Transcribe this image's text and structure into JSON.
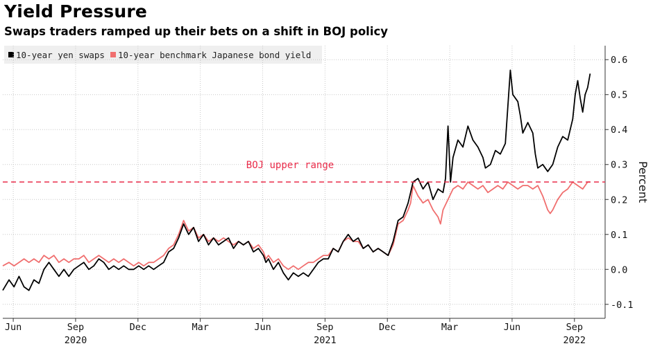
{
  "colors": {
    "swaps": "#000000",
    "bond": "#f06e6e",
    "threshold": "#ea2c4a",
    "grid": "#c8c8c8"
  },
  "chart_data": {
    "type": "line",
    "title": "Yield Pressure",
    "subtitle": "Swaps traders ramped up their bets on a shift in BOJ policy",
    "ylabel": "Percent",
    "xlabel": "",
    "ylim": [
      -0.14,
      0.64
    ],
    "y_ticks": [
      {
        "value": 0.6,
        "label": "0.6"
      },
      {
        "value": 0.5,
        "label": "0.5"
      },
      {
        "value": 0.4,
        "label": "0.4"
      },
      {
        "value": 0.3,
        "label": "0.3"
      },
      {
        "value": 0.2,
        "label": "0.2"
      },
      {
        "value": 0.1,
        "label": "0.1"
      },
      {
        "value": 0.0,
        "label": "0.0"
      },
      {
        "value": -0.1,
        "label": "-0.1"
      }
    ],
    "x_range": [
      2020.375,
      2022.79
    ],
    "x_ticks": [
      {
        "value": 2020.417,
        "label": "Jun"
      },
      {
        "value": 2020.667,
        "label": "Sep"
      },
      {
        "value": 2020.917,
        "label": "Dec"
      },
      {
        "value": 2021.167,
        "label": "Mar"
      },
      {
        "value": 2021.417,
        "label": "Jun"
      },
      {
        "value": 2021.667,
        "label": "Sep"
      },
      {
        "value": 2021.917,
        "label": "Dec"
      },
      {
        "value": 2022.167,
        "label": "Mar"
      },
      {
        "value": 2022.417,
        "label": "Jun"
      },
      {
        "value": 2022.667,
        "label": "Sep"
      }
    ],
    "year_labels": [
      {
        "value": 2020.667,
        "label": "2020"
      },
      {
        "value": 2021.667,
        "label": "2021"
      },
      {
        "value": 2022.667,
        "label": "2022"
      }
    ],
    "threshold": {
      "value": 0.25,
      "label": "BOJ upper range"
    },
    "series": [
      {
        "name": "10-year yen swaps",
        "color": "#000000",
        "points": [
          [
            2020.375,
            -0.06
          ],
          [
            2020.4,
            -0.03
          ],
          [
            2020.42,
            -0.05
          ],
          [
            2020.44,
            -0.02
          ],
          [
            2020.46,
            -0.05
          ],
          [
            2020.48,
            -0.06
          ],
          [
            2020.5,
            -0.03
          ],
          [
            2020.52,
            -0.04
          ],
          [
            2020.54,
            0.0
          ],
          [
            2020.56,
            0.02
          ],
          [
            2020.58,
            0.0
          ],
          [
            2020.6,
            -0.02
          ],
          [
            2020.62,
            0.0
          ],
          [
            2020.64,
            -0.02
          ],
          [
            2020.66,
            0.0
          ],
          [
            2020.68,
            0.01
          ],
          [
            2020.7,
            0.02
          ],
          [
            2020.72,
            0.0
          ],
          [
            2020.74,
            0.01
          ],
          [
            2020.76,
            0.03
          ],
          [
            2020.78,
            0.02
          ],
          [
            2020.8,
            0.0
          ],
          [
            2020.82,
            0.01
          ],
          [
            2020.84,
            0.0
          ],
          [
            2020.86,
            0.01
          ],
          [
            2020.88,
            0.0
          ],
          [
            2020.9,
            0.0
          ],
          [
            2020.92,
            0.01
          ],
          [
            2020.94,
            0.0
          ],
          [
            2020.96,
            0.01
          ],
          [
            2020.98,
            0.0
          ],
          [
            2021.0,
            0.01
          ],
          [
            2021.02,
            0.02
          ],
          [
            2021.04,
            0.05
          ],
          [
            2021.06,
            0.06
          ],
          [
            2021.08,
            0.09
          ],
          [
            2021.1,
            0.13
          ],
          [
            2021.12,
            0.1
          ],
          [
            2021.14,
            0.12
          ],
          [
            2021.16,
            0.08
          ],
          [
            2021.18,
            0.1
          ],
          [
            2021.2,
            0.07
          ],
          [
            2021.22,
            0.09
          ],
          [
            2021.24,
            0.07
          ],
          [
            2021.26,
            0.08
          ],
          [
            2021.28,
            0.09
          ],
          [
            2021.3,
            0.06
          ],
          [
            2021.32,
            0.08
          ],
          [
            2021.34,
            0.07
          ],
          [
            2021.36,
            0.08
          ],
          [
            2021.38,
            0.05
          ],
          [
            2021.4,
            0.06
          ],
          [
            2021.42,
            0.04
          ],
          [
            2021.43,
            0.02
          ],
          [
            2021.44,
            0.03
          ],
          [
            2021.46,
            0.0
          ],
          [
            2021.48,
            0.02
          ],
          [
            2021.5,
            -0.01
          ],
          [
            2021.52,
            -0.03
          ],
          [
            2021.54,
            -0.01
          ],
          [
            2021.56,
            -0.02
          ],
          [
            2021.58,
            -0.01
          ],
          [
            2021.6,
            -0.02
          ],
          [
            2021.62,
            0.0
          ],
          [
            2021.64,
            0.02
          ],
          [
            2021.66,
            0.03
          ],
          [
            2021.68,
            0.03
          ],
          [
            2021.7,
            0.06
          ],
          [
            2021.72,
            0.05
          ],
          [
            2021.74,
            0.08
          ],
          [
            2021.76,
            0.1
          ],
          [
            2021.78,
            0.08
          ],
          [
            2021.8,
            0.09
          ],
          [
            2021.82,
            0.06
          ],
          [
            2021.84,
            0.07
          ],
          [
            2021.86,
            0.05
          ],
          [
            2021.88,
            0.06
          ],
          [
            2021.9,
            0.05
          ],
          [
            2021.92,
            0.04
          ],
          [
            2021.94,
            0.08
          ],
          [
            2021.96,
            0.14
          ],
          [
            2021.98,
            0.15
          ],
          [
            2022.0,
            0.19
          ],
          [
            2022.01,
            0.22
          ],
          [
            2022.02,
            0.25
          ],
          [
            2022.04,
            0.26
          ],
          [
            2022.06,
            0.23
          ],
          [
            2022.08,
            0.25
          ],
          [
            2022.1,
            0.2
          ],
          [
            2022.12,
            0.23
          ],
          [
            2022.14,
            0.22
          ],
          [
            2022.15,
            0.26
          ],
          [
            2022.16,
            0.41
          ],
          [
            2022.17,
            0.25
          ],
          [
            2022.18,
            0.32
          ],
          [
            2022.2,
            0.37
          ],
          [
            2022.22,
            0.35
          ],
          [
            2022.24,
            0.41
          ],
          [
            2022.26,
            0.37
          ],
          [
            2022.28,
            0.35
          ],
          [
            2022.3,
            0.32
          ],
          [
            2022.31,
            0.29
          ],
          [
            2022.33,
            0.3
          ],
          [
            2022.35,
            0.34
          ],
          [
            2022.37,
            0.33
          ],
          [
            2022.39,
            0.36
          ],
          [
            2022.41,
            0.57
          ],
          [
            2022.42,
            0.5
          ],
          [
            2022.44,
            0.48
          ],
          [
            2022.45,
            0.44
          ],
          [
            2022.46,
            0.39
          ],
          [
            2022.48,
            0.42
          ],
          [
            2022.5,
            0.39
          ],
          [
            2022.51,
            0.33
          ],
          [
            2022.52,
            0.29
          ],
          [
            2022.54,
            0.3
          ],
          [
            2022.56,
            0.28
          ],
          [
            2022.58,
            0.3
          ],
          [
            2022.6,
            0.35
          ],
          [
            2022.62,
            0.38
          ],
          [
            2022.64,
            0.37
          ],
          [
            2022.66,
            0.43
          ],
          [
            2022.67,
            0.5
          ],
          [
            2022.68,
            0.54
          ],
          [
            2022.69,
            0.49
          ],
          [
            2022.7,
            0.45
          ],
          [
            2022.71,
            0.5
          ],
          [
            2022.72,
            0.52
          ],
          [
            2022.73,
            0.56
          ]
        ]
      },
      {
        "name": "10-year benchmark Japanese bond yield",
        "color": "#f06e6e",
        "points": [
          [
            2020.375,
            0.01
          ],
          [
            2020.4,
            0.02
          ],
          [
            2020.42,
            0.01
          ],
          [
            2020.44,
            0.02
          ],
          [
            2020.46,
            0.03
          ],
          [
            2020.48,
            0.02
          ],
          [
            2020.5,
            0.03
          ],
          [
            2020.52,
            0.02
          ],
          [
            2020.54,
            0.04
          ],
          [
            2020.56,
            0.03
          ],
          [
            2020.58,
            0.04
          ],
          [
            2020.6,
            0.02
          ],
          [
            2020.62,
            0.03
          ],
          [
            2020.64,
            0.02
          ],
          [
            2020.66,
            0.03
          ],
          [
            2020.68,
            0.03
          ],
          [
            2020.7,
            0.04
          ],
          [
            2020.72,
            0.02
          ],
          [
            2020.74,
            0.03
          ],
          [
            2020.76,
            0.04
          ],
          [
            2020.78,
            0.03
          ],
          [
            2020.8,
            0.02
          ],
          [
            2020.82,
            0.03
          ],
          [
            2020.84,
            0.02
          ],
          [
            2020.86,
            0.03
          ],
          [
            2020.88,
            0.02
          ],
          [
            2020.9,
            0.01
          ],
          [
            2020.92,
            0.02
          ],
          [
            2020.94,
            0.01
          ],
          [
            2020.96,
            0.02
          ],
          [
            2020.98,
            0.02
          ],
          [
            2021.0,
            0.03
          ],
          [
            2021.02,
            0.04
          ],
          [
            2021.04,
            0.06
          ],
          [
            2021.06,
            0.07
          ],
          [
            2021.08,
            0.1
          ],
          [
            2021.1,
            0.14
          ],
          [
            2021.12,
            0.11
          ],
          [
            2021.14,
            0.12
          ],
          [
            2021.16,
            0.09
          ],
          [
            2021.18,
            0.1
          ],
          [
            2021.2,
            0.08
          ],
          [
            2021.22,
            0.09
          ],
          [
            2021.24,
            0.08
          ],
          [
            2021.26,
            0.09
          ],
          [
            2021.28,
            0.08
          ],
          [
            2021.3,
            0.07
          ],
          [
            2021.32,
            0.08
          ],
          [
            2021.34,
            0.07
          ],
          [
            2021.36,
            0.08
          ],
          [
            2021.38,
            0.06
          ],
          [
            2021.4,
            0.07
          ],
          [
            2021.42,
            0.05
          ],
          [
            2021.43,
            0.03
          ],
          [
            2021.44,
            0.04
          ],
          [
            2021.46,
            0.02
          ],
          [
            2021.48,
            0.03
          ],
          [
            2021.5,
            0.01
          ],
          [
            2021.52,
            0.0
          ],
          [
            2021.54,
            0.01
          ],
          [
            2021.56,
            0.0
          ],
          [
            2021.58,
            0.01
          ],
          [
            2021.6,
            0.02
          ],
          [
            2021.62,
            0.02
          ],
          [
            2021.64,
            0.03
          ],
          [
            2021.66,
            0.04
          ],
          [
            2021.68,
            0.04
          ],
          [
            2021.7,
            0.06
          ],
          [
            2021.72,
            0.05
          ],
          [
            2021.74,
            0.08
          ],
          [
            2021.76,
            0.09
          ],
          [
            2021.78,
            0.08
          ],
          [
            2021.8,
            0.08
          ],
          [
            2021.82,
            0.06
          ],
          [
            2021.84,
            0.07
          ],
          [
            2021.86,
            0.05
          ],
          [
            2021.88,
            0.06
          ],
          [
            2021.9,
            0.05
          ],
          [
            2021.92,
            0.04
          ],
          [
            2021.94,
            0.07
          ],
          [
            2021.96,
            0.13
          ],
          [
            2021.98,
            0.14
          ],
          [
            2022.0,
            0.17
          ],
          [
            2022.01,
            0.19
          ],
          [
            2022.02,
            0.24
          ],
          [
            2022.04,
            0.21
          ],
          [
            2022.06,
            0.19
          ],
          [
            2022.08,
            0.2
          ],
          [
            2022.1,
            0.17
          ],
          [
            2022.12,
            0.15
          ],
          [
            2022.13,
            0.13
          ],
          [
            2022.14,
            0.17
          ],
          [
            2022.16,
            0.2
          ],
          [
            2022.18,
            0.23
          ],
          [
            2022.2,
            0.24
          ],
          [
            2022.22,
            0.23
          ],
          [
            2022.24,
            0.25
          ],
          [
            2022.26,
            0.24
          ],
          [
            2022.28,
            0.23
          ],
          [
            2022.3,
            0.24
          ],
          [
            2022.32,
            0.22
          ],
          [
            2022.34,
            0.23
          ],
          [
            2022.36,
            0.24
          ],
          [
            2022.38,
            0.23
          ],
          [
            2022.4,
            0.25
          ],
          [
            2022.42,
            0.24
          ],
          [
            2022.44,
            0.23
          ],
          [
            2022.46,
            0.24
          ],
          [
            2022.48,
            0.24
          ],
          [
            2022.5,
            0.23
          ],
          [
            2022.52,
            0.24
          ],
          [
            2022.54,
            0.21
          ],
          [
            2022.56,
            0.17
          ],
          [
            2022.57,
            0.16
          ],
          [
            2022.58,
            0.17
          ],
          [
            2022.6,
            0.2
          ],
          [
            2022.62,
            0.22
          ],
          [
            2022.64,
            0.23
          ],
          [
            2022.66,
            0.25
          ],
          [
            2022.68,
            0.24
          ],
          [
            2022.7,
            0.23
          ],
          [
            2022.72,
            0.25
          ],
          [
            2022.73,
            0.25
          ]
        ]
      }
    ]
  }
}
